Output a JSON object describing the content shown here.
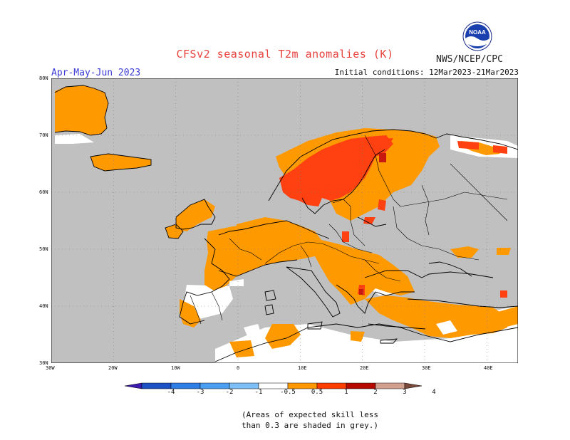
{
  "header": {
    "title": "CFSv2 seasonal T2m anomalies (K)",
    "credit": "NWS/NCEP/CPC",
    "season": "Apr-May-Jun 2023",
    "initial": "Initial conditions: 12Mar2023-21Mar2023",
    "logo_text": "NOAA"
  },
  "axes": {
    "lat_labels": [
      "80N",
      "70N",
      "60N",
      "50N",
      "40N",
      "30N"
    ],
    "lon_labels": [
      "30W",
      "20W",
      "10W",
      "0",
      "10E",
      "20E",
      "30E",
      "40E"
    ]
  },
  "legend": {
    "labels": [
      "-4",
      "-3",
      "-2",
      "-1",
      "-0.5",
      "0.5",
      "1",
      "2",
      "3",
      "4"
    ],
    "colors": [
      "#3c1bb0",
      "#1d52c4",
      "#2f7ee3",
      "#4a9ff0",
      "#7dc0f7",
      "#ffffff",
      "#ff9900",
      "#ff3d00",
      "#b40a00",
      "#d4a090",
      "#7a4a3a"
    ]
  },
  "map_colors": {
    "land": "#ffffff",
    "grey": "#c0c0c0",
    "orange": "#ff9900",
    "red": "#ff4010",
    "darkred": "#c81810",
    "coast": "#000000"
  },
  "note": {
    "line1": "(Areas of expected skill less",
    "line2": "than 0.3 are shaded in grey.)"
  }
}
